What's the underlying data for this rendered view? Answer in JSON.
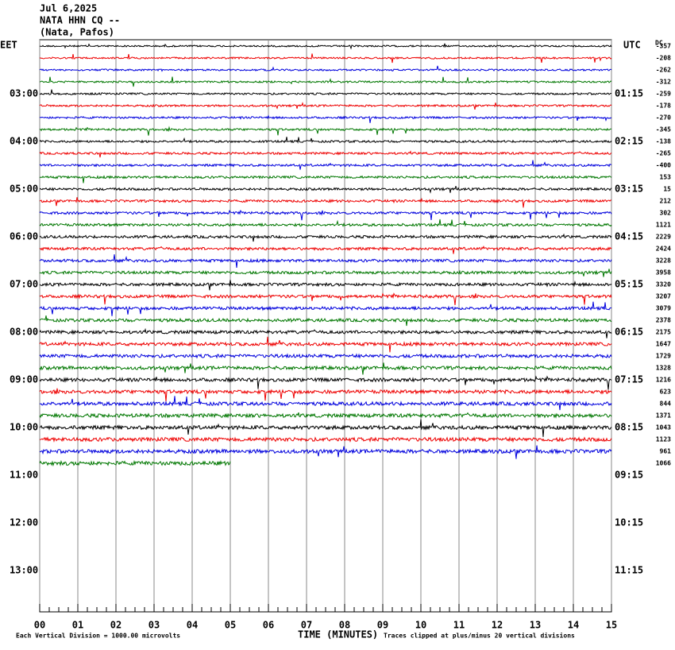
{
  "header": {
    "date": "Jul 6,2025",
    "station": "NATA HHN CQ --",
    "location": "(Nata, Pafos)"
  },
  "left_label": "EET",
  "right_label": "UTC",
  "dc_label": "DC",
  "hour_labels": [
    "03:00",
    "04:00",
    "05:00",
    "06:00",
    "07:00",
    "08:00",
    "09:00",
    "10:00",
    "11:00",
    "12:00",
    "13:00"
  ],
  "utc_labels": [
    "01:15",
    "02:15",
    "03:15",
    "04:15",
    "05:15",
    "06:15",
    "07:15",
    "08:15",
    "09:15",
    "10:15",
    "11:15"
  ],
  "dc_offsets": [
    -357,
    -208,
    -262,
    -312,
    -259,
    -178,
    -270,
    -345,
    -138,
    -265,
    -400,
    153,
    15,
    212,
    302,
    1121,
    2229,
    2424,
    3228,
    3958,
    3320,
    3207,
    3079,
    2378,
    2175,
    1647,
    1729,
    1328,
    1216,
    623,
    844,
    1371,
    1043,
    1123,
    961,
    1066
  ],
  "x_ticks": [
    "00",
    "01",
    "02",
    "03",
    "04",
    "05",
    "06",
    "07",
    "08",
    "09",
    "10",
    "11",
    "12",
    "13",
    "14",
    "15"
  ],
  "x_axis_label": "TIME (MINUTES)",
  "footer_left": "Each Vertical Division = 1000.00 microvolts",
  "footer_right": "Traces clipped at plus/minus 20 vertical divisions"
}
